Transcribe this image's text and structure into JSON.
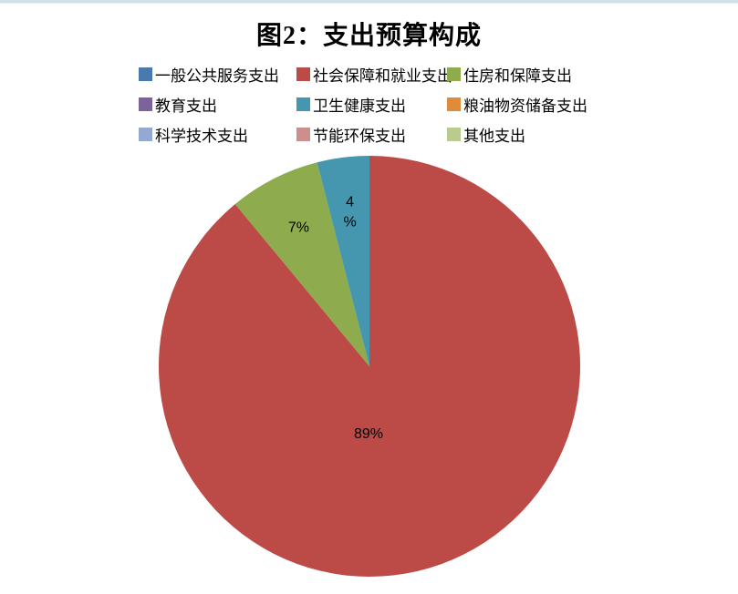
{
  "window": {
    "top_strip_color": "#cfe1e7"
  },
  "chart_data": {
    "type": "pie",
    "title": "图2：支出预算构成",
    "legend_position": "top",
    "legend_columns": 3,
    "series": [
      {
        "name": "一般公共服务支出",
        "value": 0,
        "color": "#4a7aad",
        "label": ""
      },
      {
        "name": "社会保障和就业支出",
        "value": 89,
        "color": "#bc4b48",
        "label": "89%"
      },
      {
        "name": "住房和保障支出",
        "value": 7,
        "color": "#8eac4d",
        "label": "7%"
      },
      {
        "name": "教育支出",
        "value": 0,
        "color": "#7b649b",
        "label": ""
      },
      {
        "name": "卫生健康支出",
        "value": 4,
        "color": "#4497af",
        "label": "4\n%"
      },
      {
        "name": "粮油物资储备支出",
        "value": 0,
        "color": "#de8c3a",
        "label": ""
      },
      {
        "name": "科学技术支出",
        "value": 0,
        "color": "#93a9d2",
        "label": ""
      },
      {
        "name": "节能环保支出",
        "value": 0,
        "color": "#cc8f8d",
        "label": ""
      },
      {
        "name": "其他支出",
        "value": 0,
        "color": "#b8cc92",
        "label": ""
      }
    ]
  }
}
